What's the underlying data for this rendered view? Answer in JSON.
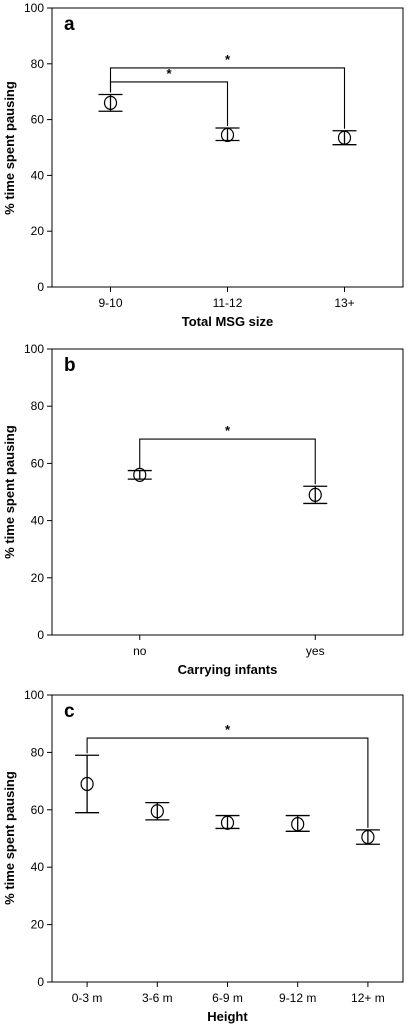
{
  "chart_data": [
    {
      "type": "scatter",
      "panel_label": "a",
      "xlabel": "Total MSG size",
      "ylabel": "% time spent pausing",
      "ylim": [
        0,
        100
      ],
      "yticks": [
        0,
        20,
        40,
        60,
        80,
        100
      ],
      "categories": [
        "9-10",
        "11-12",
        "13+"
      ],
      "series": [
        {
          "values": [
            66,
            54.5,
            53.5
          ],
          "lower": [
            63,
            52.5,
            51
          ],
          "upper": [
            69,
            57,
            56
          ]
        }
      ],
      "significance": [
        {
          "from": 0,
          "to": 1,
          "level": 73.5,
          "label": "*"
        },
        {
          "from": 0,
          "to": 2,
          "level": 78.5,
          "label": "*"
        }
      ],
      "grid": false
    },
    {
      "type": "scatter",
      "panel_label": "b",
      "xlabel": "Carrying infants",
      "ylabel": "% time spent pausing",
      "ylim": [
        0,
        100
      ],
      "yticks": [
        0,
        20,
        40,
        60,
        80,
        100
      ],
      "categories": [
        "no",
        "yes"
      ],
      "series": [
        {
          "values": [
            56,
            49
          ],
          "lower": [
            54.5,
            46
          ],
          "upper": [
            57.5,
            52
          ]
        }
      ],
      "significance": [
        {
          "from": 0,
          "to": 1,
          "level": 68.5,
          "label": "*"
        }
      ],
      "grid": false
    },
    {
      "type": "scatter",
      "panel_label": "c",
      "xlabel": "Height",
      "ylabel": "% time spent pausing",
      "ylim": [
        0,
        100
      ],
      "yticks": [
        0,
        20,
        40,
        60,
        80,
        100
      ],
      "categories": [
        "0-3 m",
        "3-6 m",
        "6-9 m",
        "9-12 m",
        "12+ m"
      ],
      "series": [
        {
          "values": [
            69,
            59.5,
            55.5,
            55,
            50.5
          ],
          "lower": [
            59,
            56.5,
            53.5,
            52.5,
            48
          ],
          "upper": [
            79,
            62.5,
            58,
            58,
            53
          ]
        }
      ],
      "significance": [
        {
          "from": 0,
          "to": 4,
          "level": 85,
          "label": "*"
        }
      ],
      "grid": false
    }
  ]
}
